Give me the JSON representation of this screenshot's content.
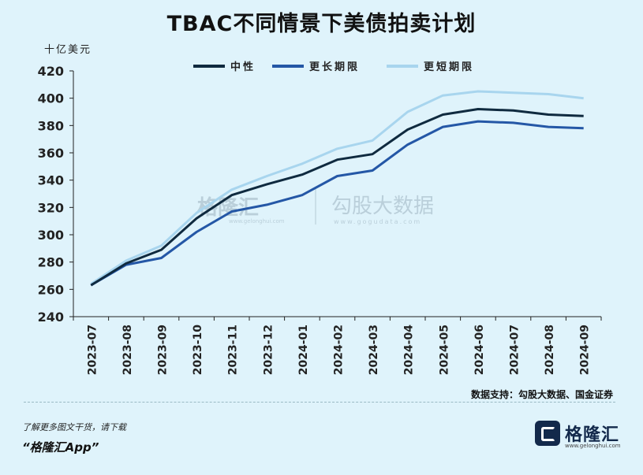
{
  "title": "TBAC不同情景下美债拍卖计划",
  "unit_label": "十亿美元",
  "source_text": "数据支持：勾股大数据、国金证券",
  "footer": {
    "line1": "了解更多图文干货，请下载",
    "line2": "“格隆汇App”",
    "logo_text": "格隆汇",
    "logo_url": "www.gelonghui.com"
  },
  "watermark": {
    "brand1": "格隆汇",
    "brand1_url": "www.gelonghui.com",
    "brand2": "勾股大数据",
    "brand2_url": "www.gogudata.com"
  },
  "colors": {
    "background": "#dff3fb",
    "series_neutral": "#0f2a3f",
    "series_longer": "#2457a6",
    "series_shorter": "#a8d5ee"
  },
  "chart_data": {
    "type": "line",
    "title": "TBAC不同情景下美债拍卖计划",
    "ylabel": "十亿美元",
    "ylim": [
      240,
      420
    ],
    "yticks": [
      240,
      260,
      280,
      300,
      320,
      340,
      360,
      380,
      400,
      420
    ],
    "legend_position": "top-center",
    "grid": false,
    "categories": [
      "2023-07",
      "2023-08",
      "2023-09",
      "2023-10",
      "2023-11",
      "2023-12",
      "2024-01",
      "2024-02",
      "2024-03",
      "2024-04",
      "2024-05",
      "2024-06",
      "2024-07",
      "2024-08",
      "2024-09"
    ],
    "series": [
      {
        "name": "中性",
        "color": "#0f2a3f",
        "values": [
          263,
          279,
          289,
          312,
          329,
          337,
          344,
          355,
          359,
          377,
          388,
          392,
          391,
          388,
          387
        ]
      },
      {
        "name": "更长期限",
        "color": "#2457a6",
        "values": [
          263,
          278,
          283,
          302,
          317,
          322,
          329,
          343,
          347,
          366,
          379,
          383,
          382,
          379,
          378
        ]
      },
      {
        "name": "更短期限",
        "color": "#a8d5ee",
        "values": [
          264,
          281,
          292,
          316,
          333,
          343,
          352,
          363,
          369,
          390,
          402,
          405,
          404,
          403,
          400
        ]
      }
    ]
  }
}
